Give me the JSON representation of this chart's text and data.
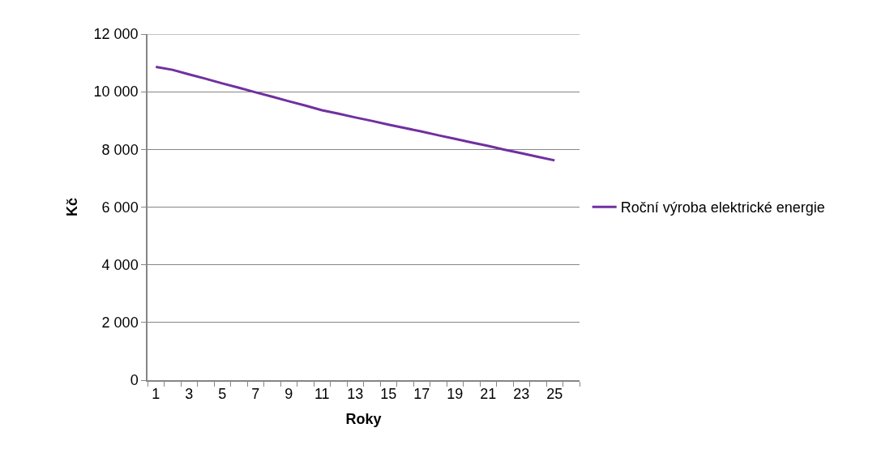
{
  "chart_data": {
    "type": "line",
    "xlabel": "Roky",
    "ylabel": "Kč",
    "x": [
      1,
      2,
      3,
      4,
      5,
      6,
      7,
      8,
      9,
      10,
      11,
      12,
      13,
      14,
      15,
      16,
      17,
      18,
      19,
      20,
      21,
      22,
      23,
      24,
      25
    ],
    "series": [
      {
        "name": "Roční výroba elektrické energie",
        "color": "#7030a0",
        "values": [
          10860,
          10760,
          10600,
          10450,
          10290,
          10140,
          9980,
          9830,
          9670,
          9520,
          9360,
          9240,
          9110,
          8990,
          8860,
          8740,
          8620,
          8490,
          8370,
          8240,
          8120,
          7990,
          7870,
          7740,
          7620
        ]
      }
    ],
    "xlim": [
      0.5,
      26.5
    ],
    "xticks": [
      1,
      3,
      5,
      7,
      9,
      11,
      13,
      15,
      17,
      19,
      21,
      23,
      25,
      {
        "value": 0.5,
        "label": null
      },
      {
        "value": 1.5,
        "label": null
      },
      {
        "value": 2.5,
        "label": null
      },
      {
        "value": 3.5,
        "label": null
      },
      {
        "value": 4.5,
        "label": null
      },
      {
        "value": 5.5,
        "label": null
      },
      {
        "value": 6.5,
        "label": null
      },
      {
        "value": 7.5,
        "label": null
      },
      {
        "value": 8.5,
        "label": null
      },
      {
        "value": 9.5,
        "label": null
      },
      {
        "value": 10.5,
        "label": null
      },
      {
        "value": 11.5,
        "label": null
      },
      {
        "value": 12.5,
        "label": null
      },
      {
        "value": 13.5,
        "label": null
      },
      {
        "value": 14.5,
        "label": null
      },
      {
        "value": 15.5,
        "label": null
      },
      {
        "value": 16.5,
        "label": null
      },
      {
        "value": 17.5,
        "label": null
      },
      {
        "value": 18.5,
        "label": null
      },
      {
        "value": 19.5,
        "label": null
      },
      {
        "value": 20.5,
        "label": null
      },
      {
        "value": 21.5,
        "label": null
      },
      {
        "value": 22.5,
        "label": null
      },
      {
        "value": 23.5,
        "label": null
      },
      {
        "value": 24.5,
        "label": null
      },
      {
        "value": 25.5,
        "label": null
      },
      {
        "value": 26.5,
        "label": null
      }
    ],
    "ylim": [
      0,
      12000
    ],
    "yticks": [
      {
        "value": 0,
        "label": "0"
      },
      {
        "value": 2000,
        "label": "2 000"
      },
      {
        "value": 4000,
        "label": "4 000"
      },
      {
        "value": 6000,
        "label": "6 000"
      },
      {
        "value": 8000,
        "label": "8 000"
      },
      {
        "value": 10000,
        "label": "10 000"
      },
      {
        "value": 12000,
        "label": "12 000"
      }
    ],
    "grid": "y",
    "legend": "right",
    "marker": "none",
    "line_style": "solid"
  }
}
